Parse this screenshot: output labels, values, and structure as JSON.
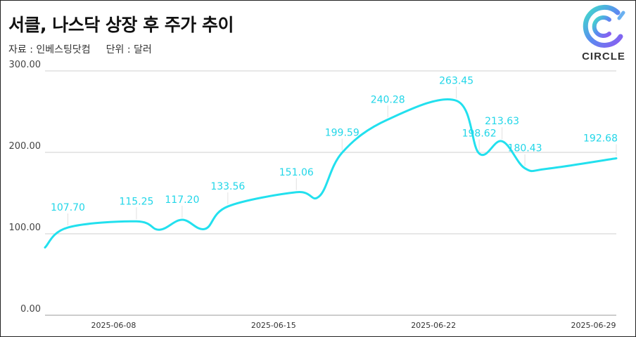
{
  "header": {
    "title": "서클, 나스닥 상장 후 주가 추이",
    "source": "자료 : 인베스팅닷컴",
    "unit": "단위 : 달러"
  },
  "logo": {
    "text": "CIRCLE",
    "icon": "circle-logo-icon"
  },
  "colors": {
    "line": "#22e0ee",
    "label": "#22d6e8",
    "grid": "#cfcfcf"
  },
  "chart_data": {
    "type": "line",
    "x_tick_labels": [
      "2025-06-08",
      "2025-06-15",
      "2025-06-22",
      "2025-06-29"
    ],
    "y_tick_labels": [
      "0.00",
      "100.00",
      "200.00",
      "300.00"
    ],
    "ylim": [
      0,
      300
    ],
    "xlim": [
      "2025-06-05",
      "2025-06-30"
    ],
    "grid": true,
    "series": [
      {
        "dates": [
          "2025-06-05",
          "2025-06-06",
          "2025-06-09",
          "2025-06-10",
          "2025-06-11",
          "2025-06-12",
          "2025-06-13",
          "2025-06-16",
          "2025-06-17",
          "2025-06-18",
          "2025-06-20",
          "2025-06-23",
          "2025-06-24",
          "2025-06-25",
          "2025-06-26",
          "2025-06-27",
          "2025-06-30"
        ],
        "values": [
          83.23,
          107.7,
          115.25,
          105.0,
          117.2,
          106.0,
          133.56,
          151.06,
          146.0,
          199.59,
          240.28,
          263.45,
          198.62,
          213.63,
          180.43,
          180.0,
          192.68
        ]
      }
    ],
    "data_labels": [
      {
        "date": "2025-06-06",
        "text": "107.70"
      },
      {
        "date": "2025-06-09",
        "text": "115.25"
      },
      {
        "date": "2025-06-11",
        "text": "117.20"
      },
      {
        "date": "2025-06-13",
        "text": "133.56"
      },
      {
        "date": "2025-06-16",
        "text": "151.06"
      },
      {
        "date": "2025-06-18",
        "text": "199.59"
      },
      {
        "date": "2025-06-20",
        "text": "240.28"
      },
      {
        "date": "2025-06-23",
        "text": "263.45"
      },
      {
        "date": "2025-06-24",
        "text": "198.62"
      },
      {
        "date": "2025-06-25",
        "text": "213.63"
      },
      {
        "date": "2025-06-26",
        "text": "180.43"
      },
      {
        "date": "2025-06-30",
        "text": "192.68"
      }
    ]
  }
}
